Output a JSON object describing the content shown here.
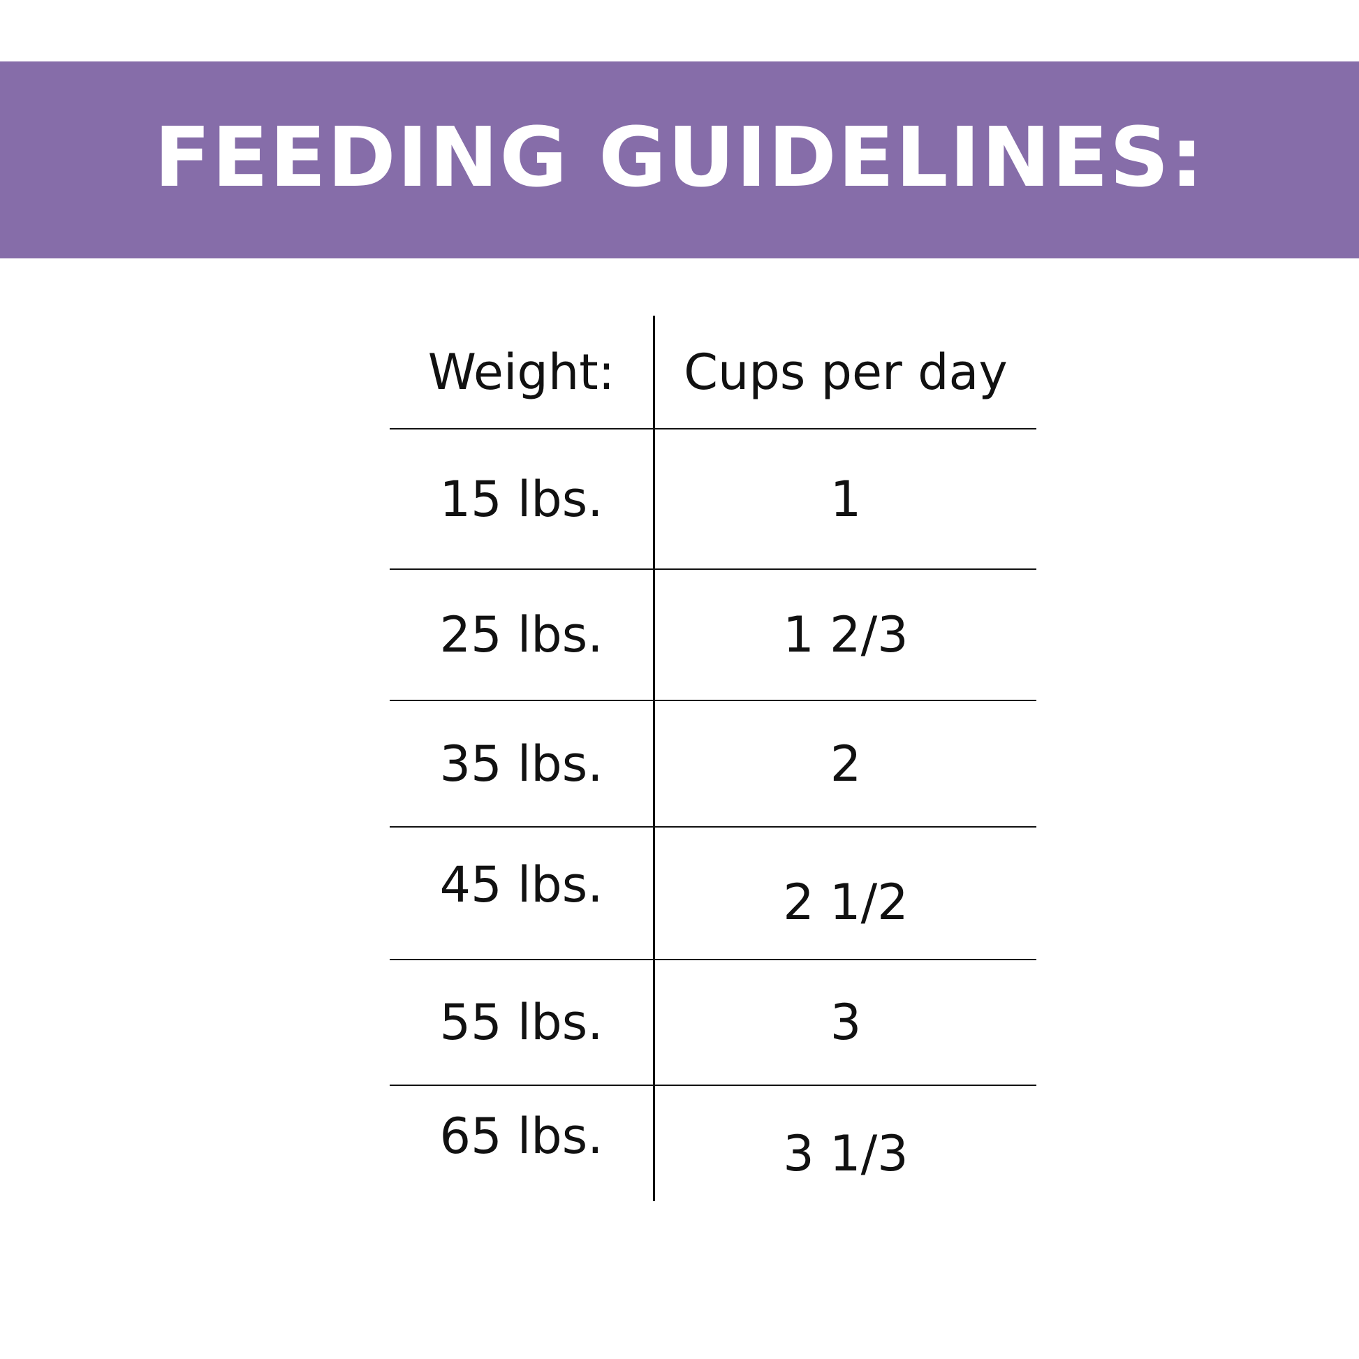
{
  "colors": {
    "banner": "#866da9",
    "banner_text": "#ffffff",
    "text": "#111111",
    "lines": "#111111"
  },
  "banner": {
    "title": "FEEDING GUIDELINES:"
  },
  "table": {
    "headers": {
      "weight": "Weight:",
      "cups": "Cups per day"
    },
    "rows": [
      {
        "weight": "15 lbs.",
        "cups": "1"
      },
      {
        "weight": "25 lbs.",
        "cups": "1 2/3"
      },
      {
        "weight": "35 lbs.",
        "cups": "2"
      },
      {
        "weight": "45 lbs.",
        "cups": "2 1/2"
      },
      {
        "weight": "55 lbs.",
        "cups": "3"
      },
      {
        "weight": "65 lbs.",
        "cups": "3 1/3"
      }
    ]
  }
}
